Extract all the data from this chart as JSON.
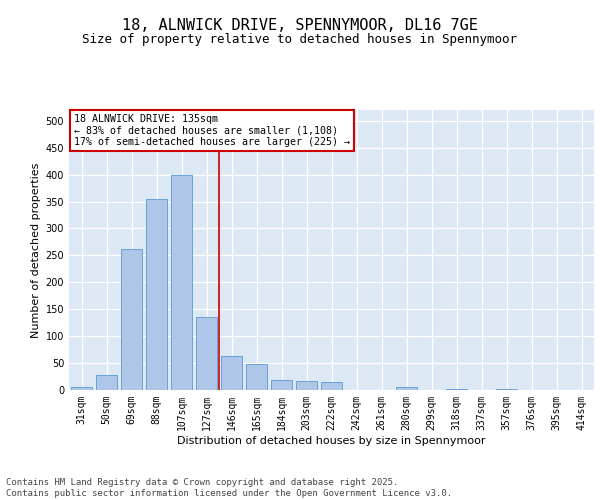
{
  "title1": "18, ALNWICK DRIVE, SPENNYMOOR, DL16 7GE",
  "title2": "Size of property relative to detached houses in Spennymoor",
  "xlabel": "Distribution of detached houses by size in Spennymoor",
  "ylabel": "Number of detached properties",
  "bins": [
    "31sqm",
    "50sqm",
    "69sqm",
    "88sqm",
    "107sqm",
    "127sqm",
    "146sqm",
    "165sqm",
    "184sqm",
    "203sqm",
    "222sqm",
    "242sqm",
    "261sqm",
    "280sqm",
    "299sqm",
    "318sqm",
    "337sqm",
    "357sqm",
    "376sqm",
    "395sqm",
    "414sqm"
  ],
  "values": [
    5,
    27,
    262,
    355,
    400,
    135,
    63,
    48,
    18,
    16,
    14,
    0,
    0,
    5,
    0,
    2,
    0,
    1,
    0,
    0,
    0
  ],
  "bar_color": "#aec6e8",
  "bar_edge_color": "#5b9bd5",
  "vline_color": "#cc0000",
  "annotation_text": "18 ALNWICK DRIVE: 135sqm\n← 83% of detached houses are smaller (1,108)\n17% of semi-detached houses are larger (225) →",
  "annotation_box_color": "#ffffff",
  "annotation_box_edge": "#cc0000",
  "ylim": [
    0,
    520
  ],
  "yticks": [
    0,
    50,
    100,
    150,
    200,
    250,
    300,
    350,
    400,
    450,
    500
  ],
  "background_color": "#dde8f5",
  "footer": "Contains HM Land Registry data © Crown copyright and database right 2025.\nContains public sector information licensed under the Open Government Licence v3.0.",
  "title_fontsize": 11,
  "subtitle_fontsize": 9,
  "axis_label_fontsize": 8,
  "tick_fontsize": 7,
  "footer_fontsize": 6.5
}
